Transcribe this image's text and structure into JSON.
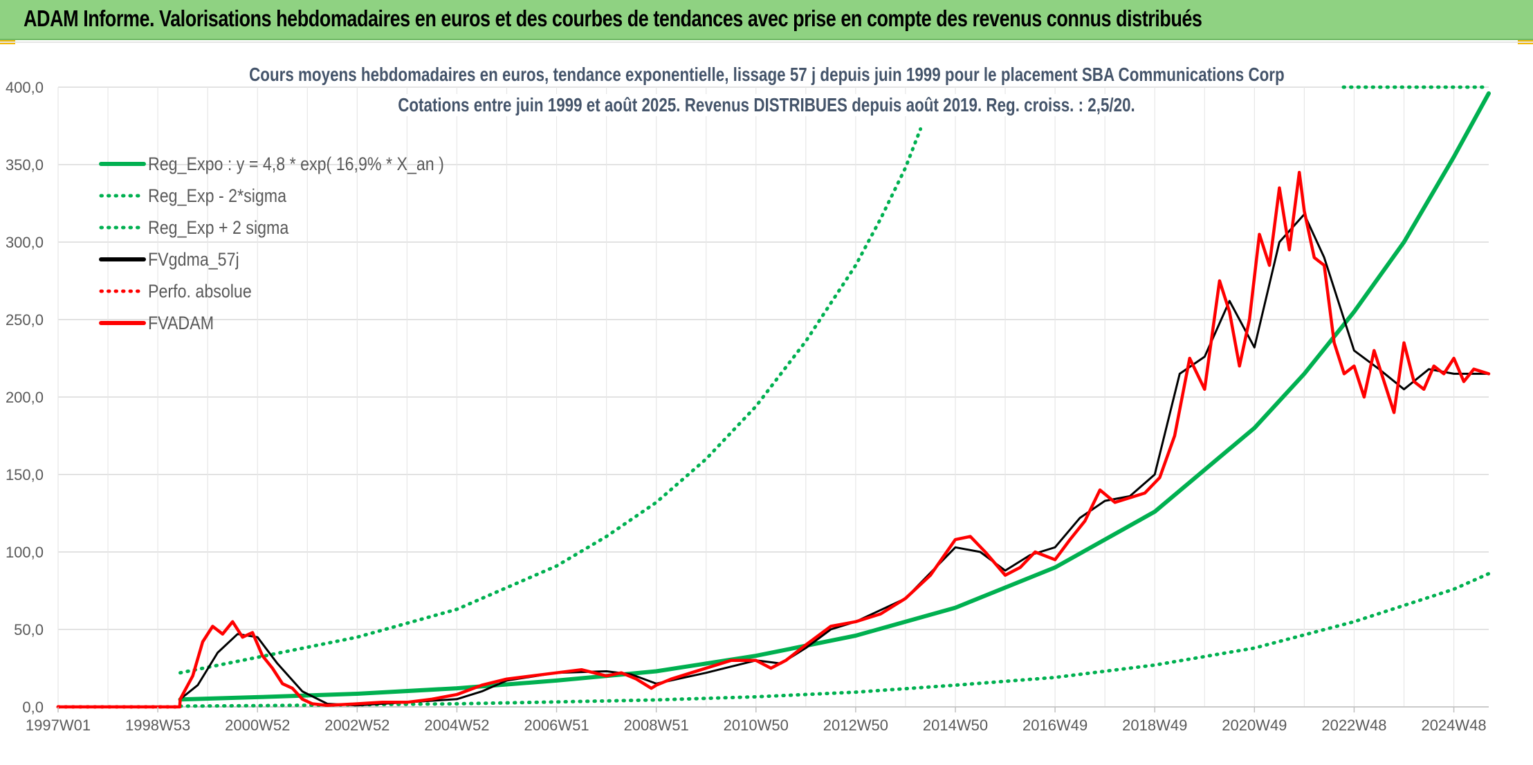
{
  "banner": {
    "title": "ADAM Informe. Valorisations hebdomadaires en euros et des courbes de tendances avec prise en compte des revenus connus distribués"
  },
  "colors": {
    "banner_bg": "#8fd282",
    "green": "#00b050",
    "red": "#ff0000",
    "black": "#000000",
    "grid": "#d9d9d9",
    "subtitle": "#44546a"
  },
  "chart_data": {
    "type": "line",
    "title": "Cours moyens hebdomadaires en euros, tendance exponentielle, lissage 57 j depuis juin 1999 pour le placement SBA Communications Corp",
    "subtitle": "Cotations entre juin 1999 et août 2025. Revenus DISTRIBUES depuis août 2019. Reg. croiss. : 2,5/20.",
    "xlabel": "",
    "ylabel": "",
    "ylim": [
      0,
      400
    ],
    "yticks": [
      "0,0",
      "50,0",
      "100,0",
      "150,0",
      "200,0",
      "250,0",
      "300,0",
      "350,0",
      "400,0"
    ],
    "xlim": [
      1997.0,
      2025.7
    ],
    "xticks": [
      {
        "label": "1997W01",
        "x": 1997.0
      },
      {
        "label": "1998W53",
        "x": 1999.0
      },
      {
        "label": "2000W52",
        "x": 2001.0
      },
      {
        "label": "2002W52",
        "x": 2003.0
      },
      {
        "label": "2004W52",
        "x": 2005.0
      },
      {
        "label": "2006W51",
        "x": 2007.0
      },
      {
        "label": "2008W51",
        "x": 2009.0
      },
      {
        "label": "2010W50",
        "x": 2011.0
      },
      {
        "label": "2012W50",
        "x": 2013.0
      },
      {
        "label": "2014W50",
        "x": 2015.0
      },
      {
        "label": "2016W49",
        "x": 2017.0
      },
      {
        "label": "2018W49",
        "x": 2019.0
      },
      {
        "label": "2020W49",
        "x": 2021.0
      },
      {
        "label": "2022W48",
        "x": 2023.0
      },
      {
        "label": "2024W48",
        "x": 2025.0
      }
    ],
    "legend_position": "top-left",
    "grid": true,
    "series": [
      {
        "name": "Reg_Expo : y = 4,8 * exp( 16,9% *  X_an )",
        "style": "solid-thick",
        "color": "#00b050",
        "x": [
          1999.45,
          2001,
          2003,
          2005,
          2007,
          2009,
          2011,
          2013,
          2015,
          2017,
          2019,
          2021,
          2022,
          2023,
          2024,
          2025,
          2025.7
        ],
        "values": [
          4.8,
          6.3,
          8.5,
          12,
          17,
          23,
          33,
          46,
          64,
          90,
          126,
          180,
          215,
          255,
          300,
          355,
          396
        ]
      },
      {
        "name": "Reg_Exp - 2*sigma",
        "style": "dotted",
        "color": "#00b050",
        "x": [
          1999.45,
          2001,
          2003,
          2005,
          2007,
          2009,
          2011,
          2013,
          2015,
          2017,
          2019,
          2021,
          2023,
          2025,
          2025.7
        ],
        "values": [
          0.5,
          0.8,
          1.4,
          2,
          3.2,
          4.5,
          6.5,
          9.5,
          14,
          19,
          27,
          38,
          55,
          76,
          86
        ]
      },
      {
        "name": "Reg_Exp + 2 sigma",
        "style": "dotted",
        "color": "#00b050",
        "x": [
          1999.45,
          2001,
          2003,
          2005,
          2007,
          2008,
          2009,
          2010,
          2011,
          2012,
          2013,
          2013.5,
          2014.0,
          2014.3
        ],
        "values": [
          22,
          32,
          45,
          63,
          91,
          110,
          132,
          160,
          194,
          236,
          285,
          315,
          348,
          373
        ]
      },
      {
        "name": "FVgdma_57j",
        "style": "solid",
        "color": "#000000",
        "x": [
          1997.0,
          1999.44,
          1999.45,
          1999.8,
          2000.2,
          2000.6,
          2001.0,
          2001.4,
          2001.9,
          2002.4,
          2003.0,
          2004.0,
          2005.0,
          2005.5,
          2006.0,
          2007.0,
          2008.0,
          2008.5,
          2009.0,
          2010.0,
          2011.0,
          2011.5,
          2012.0,
          2012.5,
          2013.0,
          2014.0,
          2015.0,
          2015.5,
          2016.0,
          2016.5,
          2017.0,
          2017.5,
          2018.0,
          2018.5,
          2019.0,
          2019.5,
          2020.0,
          2020.5,
          2021.0,
          2021.5,
          2022.0,
          2022.4,
          2023.0,
          2023.5,
          2024.0,
          2024.5,
          2025.0,
          2025.7
        ],
        "values": [
          0,
          0,
          5,
          14,
          35,
          47,
          45,
          28,
          10,
          2,
          1,
          3,
          5,
          10,
          17,
          22,
          23,
          21,
          15,
          22,
          30,
          28,
          38,
          50,
          55,
          70,
          103,
          100,
          88,
          98,
          103,
          122,
          133,
          136,
          150,
          215,
          226,
          262,
          232,
          300,
          318,
          290,
          230,
          218,
          205,
          218,
          215,
          215
        ]
      },
      {
        "name": "Perfo. absolue",
        "style": "dotted",
        "color": "#ff0000",
        "x": [
          1997.0,
          1999.44
        ],
        "values": [
          0,
          0
        ]
      },
      {
        "name": "FVADAM",
        "style": "solid-thick",
        "color": "#ff0000",
        "x": [
          1997.0,
          1999.44,
          1999.45,
          1999.7,
          1999.9,
          2000.1,
          2000.3,
          2000.5,
          2000.7,
          2000.9,
          2001.1,
          2001.3,
          2001.5,
          2001.7,
          2001.9,
          2002.1,
          2002.4,
          2003.0,
          2003.5,
          2004.0,
          2004.5,
          2005.0,
          2005.5,
          2006.0,
          2006.5,
          2007.0,
          2007.5,
          2008.0,
          2008.3,
          2008.6,
          2008.9,
          2009.0,
          2009.3,
          2009.7,
          2010.0,
          2010.5,
          2011.0,
          2011.3,
          2011.6,
          2012.0,
          2012.5,
          2013.0,
          2013.5,
          2014.0,
          2014.5,
          2015.0,
          2015.3,
          2015.6,
          2016.0,
          2016.3,
          2016.6,
          2017.0,
          2017.3,
          2017.6,
          2017.9,
          2018.2,
          2018.5,
          2018.8,
          2019.1,
          2019.4,
          2019.7,
          2020.0,
          2020.3,
          2020.5,
          2020.7,
          2020.9,
          2021.1,
          2021.3,
          2021.5,
          2021.7,
          2021.9,
          2022.0,
          2022.2,
          2022.4,
          2022.6,
          2022.8,
          2023.0,
          2023.2,
          2023.4,
          2023.6,
          2023.8,
          2024.0,
          2024.2,
          2024.4,
          2024.6,
          2024.8,
          2025.0,
          2025.2,
          2025.4,
          2025.7
        ],
        "values": [
          0,
          0,
          5,
          20,
          42,
          52,
          47,
          55,
          45,
          48,
          33,
          25,
          15,
          12,
          5,
          2,
          1,
          2,
          3,
          3,
          5,
          8,
          14,
          18,
          20,
          22,
          24,
          20,
          22,
          18,
          12,
          14,
          18,
          22,
          25,
          30,
          30,
          25,
          30,
          40,
          52,
          55,
          60,
          70,
          85,
          108,
          110,
          100,
          85,
          90,
          100,
          95,
          108,
          120,
          140,
          132,
          135,
          138,
          148,
          175,
          225,
          205,
          275,
          255,
          220,
          250,
          305,
          285,
          335,
          295,
          345,
          320,
          290,
          285,
          235,
          215,
          220,
          200,
          230,
          210,
          190,
          235,
          210,
          205,
          220,
          215,
          225,
          210,
          218,
          215
        ]
      }
    ]
  }
}
